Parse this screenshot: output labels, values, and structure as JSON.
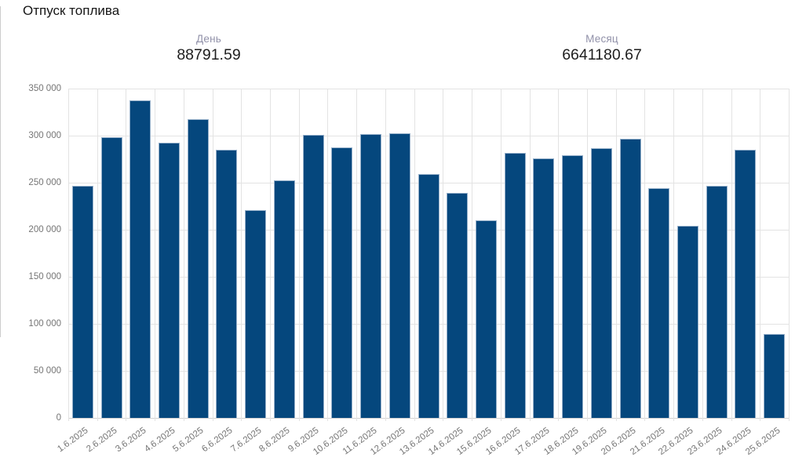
{
  "title": "Отпуск топлива",
  "stats": {
    "day_label": "День",
    "day_value": "88791.59",
    "month_label": "Месяц",
    "month_value": "6641180.67"
  },
  "chart_data": {
    "type": "bar",
    "title": "Отпуск топлива",
    "categories": [
      "1.6.2025",
      "2.6.2025",
      "3.6.2025",
      "4.6.2025",
      "5.6.2025",
      "6.6.2025",
      "7.6.2025",
      "8.6.2025",
      "9.6.2025",
      "10.6.2025",
      "11.6.2025",
      "12.6.2025",
      "13.6.2025",
      "14.6.2025",
      "15.6.2025",
      "16.6.2025",
      "17.6.2025",
      "18.6.2025",
      "19.6.2025",
      "20.6.2025",
      "21.6.2025",
      "22.6.2025",
      "23.6.2025",
      "24.6.2025",
      "25.6.2025"
    ],
    "values": [
      247000,
      298000,
      337300,
      292300,
      317300,
      285100,
      220500,
      252800,
      301200,
      287300,
      302000,
      302300,
      259000,
      239400,
      210000,
      281700,
      275900,
      279500,
      286700,
      296700,
      244500,
      204100,
      246700,
      285100,
      88791.59
    ],
    "xlabel": "",
    "ylabel": "",
    "ylim": [
      0,
      350000
    ],
    "y_ticks": [
      0,
      50000,
      100000,
      150000,
      200000,
      250000,
      300000,
      350000
    ],
    "y_tick_labels": [
      "0",
      "50 000",
      "100 000",
      "150 000",
      "200 000",
      "250 000",
      "300 000",
      "350 000"
    ],
    "grid": true,
    "legend": "none",
    "bar_color": "#05477d",
    "bar_border_color": "#96b0ca",
    "grid_color": "#e3e3e3",
    "tick_label_color": "#757575"
  },
  "colors": {
    "stat_label": "#9191a9",
    "stat_value": "#1e1e1e",
    "title": "#161616",
    "background": "#ffffff"
  }
}
